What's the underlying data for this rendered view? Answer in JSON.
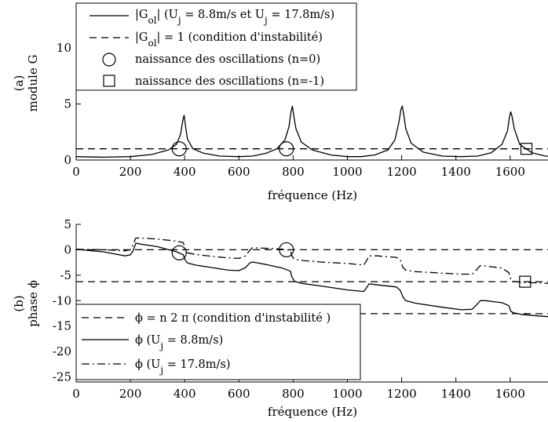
{
  "chart_data": [
    {
      "panel_label": "(a)",
      "type": "line",
      "xlabel": "fréquence (Hz)",
      "ylabel": "module G",
      "xlim": [
        0,
        1780
      ],
      "ylim": [
        0,
        14
      ],
      "xticks": [
        0,
        200,
        400,
        600,
        800,
        1000,
        1200,
        1400,
        1600
      ],
      "yticks": [
        0,
        5,
        10
      ],
      "legend": {
        "position": "top-center",
        "entries": [
          {
            "label": "|Gol| (Uj = 8.8m/s et Uj = 17.8m/s)",
            "style": "solid"
          },
          {
            "label": "|Gol| = 1 (condition d'instabilité)",
            "style": "dashed"
          },
          {
            "label": "naissance des oscillations (n=0)",
            "style": "circle"
          },
          {
            "label": "naissance des oscillations (n=-1)",
            "style": "square"
          }
        ]
      },
      "series": [
        {
          "style": "solid",
          "x": [
            0,
            100,
            200,
            280,
            340,
            370,
            385,
            393,
            398,
            403,
            410,
            430,
            470,
            530,
            600,
            650,
            700,
            740,
            770,
            785,
            792,
            797,
            802,
            810,
            830,
            870,
            940,
            1000,
            1050,
            1100,
            1150,
            1175,
            1190,
            1197,
            1202,
            1207,
            1215,
            1235,
            1280,
            1350,
            1420,
            1480,
            1530,
            1570,
            1590,
            1597,
            1602,
            1607,
            1615,
            1635,
            1680,
            1730,
            1780
          ],
          "y": [
            0.3,
            0.25,
            0.3,
            0.5,
            0.9,
            1.4,
            2.3,
            3.5,
            4.0,
            3.1,
            1.9,
            1.0,
            0.6,
            0.35,
            0.3,
            0.35,
            0.6,
            1.0,
            1.8,
            3.0,
            4.3,
            4.8,
            4.0,
            2.8,
            1.6,
            0.9,
            0.45,
            0.3,
            0.3,
            0.45,
            0.9,
            1.8,
            3.4,
            4.5,
            4.8,
            4.2,
            2.8,
            1.5,
            0.7,
            0.35,
            0.3,
            0.35,
            0.65,
            1.4,
            2.6,
            3.8,
            4.3,
            3.9,
            2.8,
            1.4,
            0.65,
            0.35,
            0.3
          ]
        },
        {
          "style": "dashed",
          "x": [
            0,
            1780
          ],
          "y": [
            1,
            1
          ]
        }
      ],
      "markers": [
        {
          "shape": "circle",
          "x": 380,
          "y": 1
        },
        {
          "shape": "circle",
          "x": 775,
          "y": 1
        },
        {
          "shape": "square",
          "x": 1660,
          "y": 1
        }
      ]
    },
    {
      "panel_label": "(b)",
      "type": "line",
      "xlabel": "fréquence (Hz)",
      "ylabel": "phase ϕ",
      "xlim": [
        0,
        1780
      ],
      "ylim": [
        -26,
        5
      ],
      "xticks": [
        0,
        200,
        400,
        600,
        800,
        1000,
        1200,
        1400,
        1600
      ],
      "yticks": [
        5,
        0,
        -5,
        -10,
        -15,
        -20,
        -25
      ],
      "ytick_labels": [
        "5",
        "0",
        "-5",
        "-10",
        "-15",
        "-20",
        "-25"
      ],
      "legend": {
        "position": "bottom-left",
        "entries": [
          {
            "label": "ϕ = n 2 π (condition d'instabilité )",
            "style": "dashed"
          },
          {
            "label": "ϕ (Uj = 8.8m/s)",
            "style": "solid"
          },
          {
            "label": "ϕ (Uj = 17.8m/s)",
            "style": "dashdot"
          }
        ]
      },
      "series": [
        {
          "style": "dashed",
          "x": [
            0,
            1780
          ],
          "y": [
            0,
            0
          ]
        },
        {
          "style": "dashed",
          "x": [
            0,
            1780
          ],
          "y": [
            -6.28,
            -6.28
          ]
        },
        {
          "style": "dashed",
          "x": [
            0,
            1780
          ],
          "y": [
            -12.57,
            -12.57
          ]
        },
        {
          "style": "solid",
          "x": [
            0,
            100,
            180,
            200,
            210,
            220,
            240,
            300,
            370,
            395,
            402,
            410,
            440,
            500,
            560,
            600,
            625,
            640,
            650,
            700,
            760,
            790,
            795,
            805,
            830,
            900,
            1000,
            1060,
            1070,
            1080,
            1110,
            1180,
            1195,
            1205,
            1215,
            1250,
            1350,
            1420,
            1460,
            1475,
            1490,
            1510,
            1570,
            1595,
            1603,
            1612,
            1640,
            1700,
            1780
          ],
          "y": [
            0.1,
            -0.4,
            -1.2,
            -1.0,
            -0.2,
            1.3,
            1.1,
            0.6,
            -0.4,
            -1.0,
            -2.0,
            -2.6,
            -3.0,
            -3.5,
            -4.0,
            -4.1,
            -3.5,
            -2.6,
            -2.4,
            -2.9,
            -3.6,
            -4.2,
            -5.3,
            -6.2,
            -6.6,
            -7.1,
            -7.9,
            -8.2,
            -7.5,
            -6.7,
            -6.9,
            -7.3,
            -8.0,
            -9.3,
            -10.0,
            -10.5,
            -11.3,
            -11.8,
            -11.7,
            -10.9,
            -10.0,
            -10.0,
            -10.4,
            -11.0,
            -12.1,
            -12.4,
            -12.7,
            -13.0,
            -13.3
          ]
        },
        {
          "style": "dashdot",
          "x": [
            0,
            100,
            180,
            200,
            210,
            220,
            240,
            300,
            370,
            395,
            402,
            410,
            440,
            500,
            560,
            600,
            625,
            640,
            650,
            700,
            760,
            790,
            795,
            805,
            830,
            900,
            1000,
            1060,
            1070,
            1080,
            1110,
            1180,
            1195,
            1205,
            1215,
            1250,
            1350,
            1420,
            1460,
            1475,
            1490,
            1510,
            1570,
            1595,
            1603,
            1612,
            1640,
            1700,
            1780
          ],
          "y": [
            0.1,
            0.0,
            -0.2,
            0.0,
            1.0,
            2.3,
            2.3,
            2.1,
            1.7,
            1.4,
            0.0,
            -0.6,
            -0.9,
            -1.3,
            -1.6,
            -1.7,
            -1.2,
            -0.1,
            0.4,
            0.3,
            0.1,
            -0.1,
            -1.2,
            -1.9,
            -2.1,
            -2.4,
            -2.7,
            -3.0,
            -2.2,
            -1.2,
            -1.2,
            -1.5,
            -2.0,
            -3.5,
            -4.0,
            -4.3,
            -4.6,
            -4.8,
            -4.8,
            -4.0,
            -3.1,
            -3.2,
            -3.6,
            -4.5,
            -5.9,
            -6.2,
            -6.4,
            -6.5,
            -6.7
          ]
        }
      ],
      "markers": [
        {
          "shape": "circle",
          "x": 380,
          "y": -0.6
        },
        {
          "shape": "circle",
          "x": 775,
          "y": 0.0
        },
        {
          "shape": "square",
          "x": 1655,
          "y": -6.28
        }
      ]
    }
  ]
}
